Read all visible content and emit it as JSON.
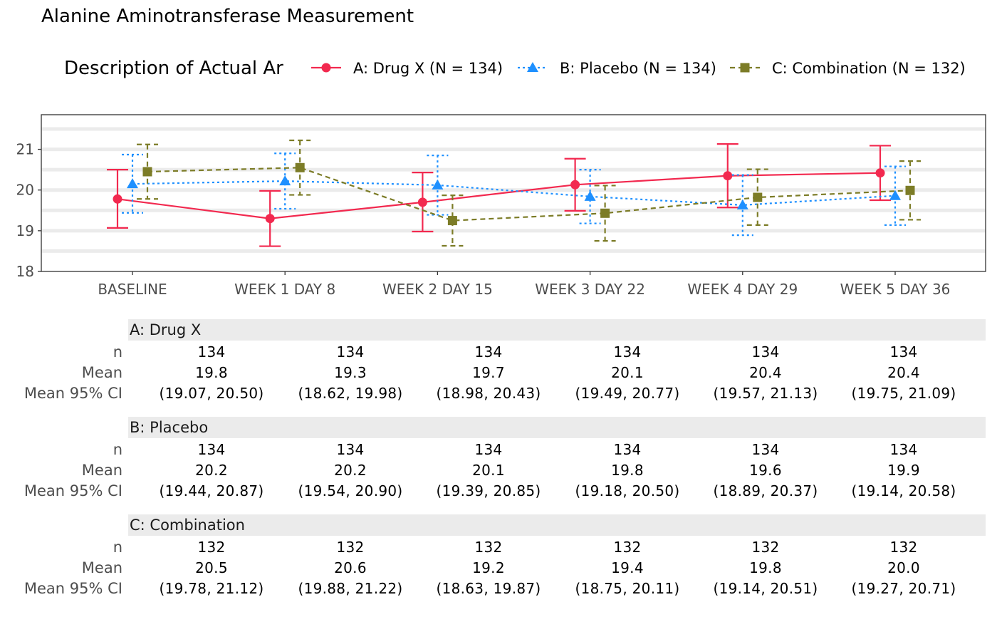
{
  "title": "Alanine Aminotransferase Measurement",
  "legend_title": "Description of Actual Ar",
  "chart_data": {
    "type": "line",
    "title": "Alanine Aminotransferase Measurement",
    "xlabel": "",
    "ylabel": "",
    "categories": [
      "BASELINE",
      "WEEK 1 DAY 8",
      "WEEK 2 DAY 15",
      "WEEK 3 DAY 22",
      "WEEK 4 DAY 29",
      "WEEK 5 DAY 36"
    ],
    "ylim": [
      18,
      21.85
    ],
    "yticks": [
      18,
      19,
      20,
      21
    ],
    "grid": true,
    "legend_position": "top",
    "series": [
      {
        "name": "A: Drug X (N = 134)",
        "color": "#F2294F",
        "marker": "circle",
        "linestyle": "solid",
        "values": [
          19.78,
          19.3,
          19.7,
          20.13,
          20.35,
          20.42
        ],
        "ci_low": [
          19.07,
          18.62,
          18.98,
          19.49,
          19.57,
          19.75
        ],
        "ci_high": [
          20.5,
          19.98,
          20.43,
          20.77,
          21.13,
          21.09
        ]
      },
      {
        "name": "B: Placebo (N = 134)",
        "color": "#1E90FF",
        "marker": "triangle",
        "linestyle": "dotted",
        "values": [
          20.15,
          20.22,
          20.12,
          19.84,
          19.63,
          19.86
        ],
        "ci_low": [
          19.44,
          19.54,
          19.39,
          19.18,
          18.89,
          19.14
        ],
        "ci_high": [
          20.87,
          20.9,
          20.85,
          20.5,
          20.37,
          20.58
        ]
      },
      {
        "name": "C: Combination (N = 132)",
        "color": "#7C7C27",
        "marker": "square",
        "linestyle": "dashed",
        "values": [
          20.45,
          20.55,
          19.25,
          19.43,
          19.82,
          19.99
        ],
        "ci_low": [
          19.78,
          19.88,
          18.63,
          18.75,
          19.14,
          19.27
        ],
        "ci_high": [
          21.12,
          21.22,
          19.87,
          20.11,
          20.51,
          20.71
        ]
      }
    ]
  },
  "table": {
    "row_labels": [
      "n",
      "Mean",
      "Mean 95% CI"
    ],
    "groups": [
      {
        "name": "A: Drug X",
        "n": [
          "134",
          "134",
          "134",
          "134",
          "134",
          "134"
        ],
        "mean": [
          "19.8",
          "19.3",
          "19.7",
          "20.1",
          "20.4",
          "20.4"
        ],
        "ci": [
          "(19.07, 20.50)",
          "(18.62, 19.98)",
          "(18.98, 20.43)",
          "(19.49, 20.77)",
          "(19.57, 21.13)",
          "(19.75, 21.09)"
        ]
      },
      {
        "name": "B: Placebo",
        "n": [
          "134",
          "134",
          "134",
          "134",
          "134",
          "134"
        ],
        "mean": [
          "20.2",
          "20.2",
          "20.1",
          "19.8",
          "19.6",
          "19.9"
        ],
        "ci": [
          "(19.44, 20.87)",
          "(19.54, 20.90)",
          "(19.39, 20.85)",
          "(19.18, 20.50)",
          "(18.89, 20.37)",
          "(19.14, 20.58)"
        ]
      },
      {
        "name": "C: Combination",
        "n": [
          "132",
          "132",
          "132",
          "132",
          "132",
          "132"
        ],
        "mean": [
          "20.5",
          "20.6",
          "19.2",
          "19.4",
          "19.8",
          "20.0"
        ],
        "ci": [
          "(19.78, 21.12)",
          "(19.88, 21.22)",
          "(18.63, 19.87)",
          "(18.75, 20.11)",
          "(19.14, 20.51)",
          "(19.27, 20.71)"
        ]
      }
    ]
  }
}
